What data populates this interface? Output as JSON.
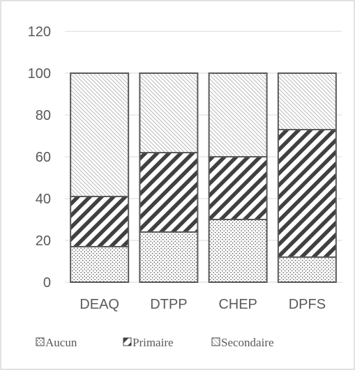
{
  "chart_data": {
    "type": "bar",
    "stacked": true,
    "title": "",
    "xlabel": "",
    "ylabel": "",
    "categories": [
      "DEAQ",
      "DTPP",
      "CHEP",
      "DPFS"
    ],
    "series": [
      {
        "name": "Aucun",
        "pattern": "dots",
        "values": [
          17,
          24,
          30,
          12
        ]
      },
      {
        "name": "Primaire",
        "pattern": "heavy-diagonal",
        "values": [
          24,
          38,
          30,
          61
        ]
      },
      {
        "name": "Secondaire",
        "pattern": "light-diagonal",
        "values": [
          59,
          38,
          40,
          27
        ]
      }
    ],
    "ylim": [
      0,
      120
    ],
    "yticks": [
      0,
      20,
      40,
      60,
      80,
      100,
      120
    ],
    "grid": true,
    "legend_position": "bottom",
    "colors": {
      "bar_edge": "#5a5a5a",
      "grid": "#d9d9d9",
      "text": "#595959",
      "pattern": "#404040"
    }
  }
}
